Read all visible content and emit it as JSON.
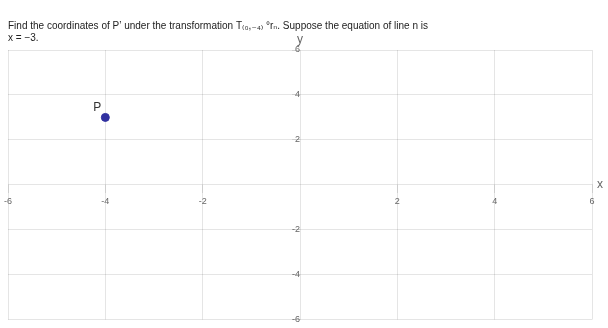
{
  "chart_data": {
    "type": "scatter",
    "title": [
      "Find the coordinates of P’ under the transformation T₍₀,₋₄₎ °rₙ. Suppose the equation of line n is",
      "x = −3."
    ],
    "x_label": "x",
    "y_label": "y",
    "x": [
      -4
    ],
    "values": [
      3
    ],
    "color": "#3030a0",
    "xlim": [
      -6,
      6
    ],
    "xticks": [
      -6,
      -4,
      -2,
      2,
      4,
      6
    ],
    "ylim": [
      -6,
      6
    ],
    "yticks": [
      -6,
      -4,
      -2,
      2,
      4,
      6
    ],
    "grid": true,
    "annotations": [
      {
        "text": "P",
        "x": -4,
        "y": 3
      }
    ]
  }
}
